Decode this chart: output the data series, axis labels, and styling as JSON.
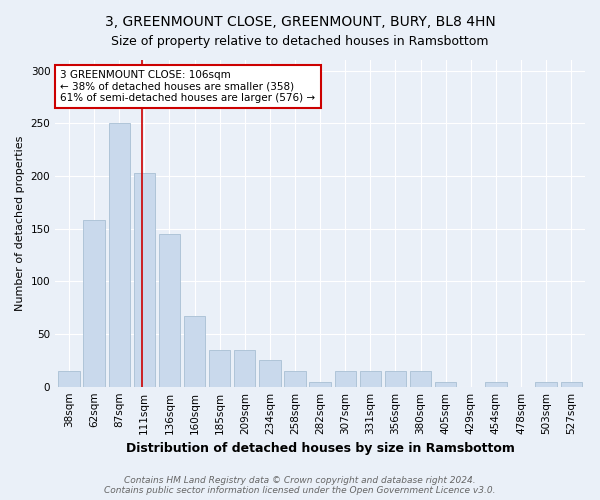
{
  "title": "3, GREENMOUNT CLOSE, GREENMOUNT, BURY, BL8 4HN",
  "subtitle": "Size of property relative to detached houses in Ramsbottom",
  "xlabel": "Distribution of detached houses by size in Ramsbottom",
  "ylabel": "Number of detached properties",
  "footnote1": "Contains HM Land Registry data © Crown copyright and database right 2024.",
  "footnote2": "Contains public sector information licensed under the Open Government Licence v3.0.",
  "categories": [
    "38sqm",
    "62sqm",
    "87sqm",
    "111sqm",
    "136sqm",
    "160sqm",
    "185sqm",
    "209sqm",
    "234sqm",
    "258sqm",
    "282sqm",
    "307sqm",
    "331sqm",
    "356sqm",
    "380sqm",
    "405sqm",
    "429sqm",
    "454sqm",
    "478sqm",
    "503sqm",
    "527sqm"
  ],
  "values": [
    15,
    158,
    250,
    203,
    145,
    67,
    35,
    35,
    25,
    15,
    4,
    15,
    15,
    15,
    15,
    4,
    0,
    4,
    0,
    4,
    4
  ],
  "bar_color": "#c9d9ec",
  "bar_edge_color": "#a8bfd4",
  "red_line_index": 3,
  "red_line_color": "#cc0000",
  "annotation_line1": "3 GREENMOUNT CLOSE: 106sqm",
  "annotation_line2": "← 38% of detached houses are smaller (358)",
  "annotation_line3": "61% of semi-detached houses are larger (576) →",
  "annotation_box_color": "#ffffff",
  "annotation_box_edge": "#cc0000",
  "ylim": [
    0,
    310
  ],
  "yticks": [
    0,
    50,
    100,
    150,
    200,
    250,
    300
  ],
  "background_color": "#eaf0f8",
  "title_fontsize": 10,
  "subtitle_fontsize": 9,
  "xlabel_fontsize": 9,
  "ylabel_fontsize": 8,
  "tick_fontsize": 7.5,
  "annotation_fontsize": 7.5,
  "footnote_fontsize": 6.5
}
